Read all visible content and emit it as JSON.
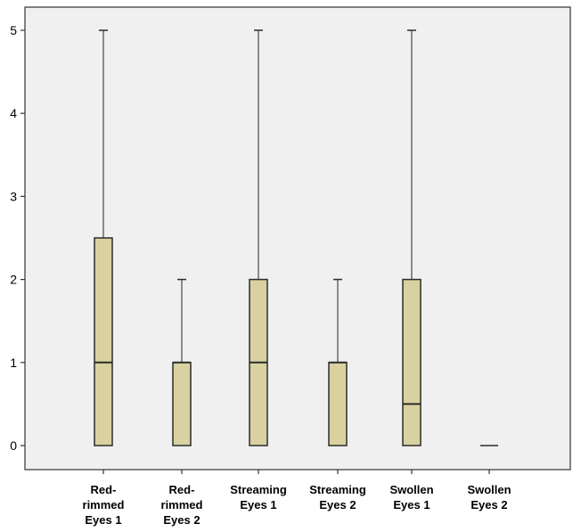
{
  "chart_data": {
    "type": "boxplot",
    "title": "",
    "xlabel": "",
    "ylabel": "",
    "ylim": [
      0,
      5
    ],
    "yticks": [
      0,
      1,
      2,
      3,
      4,
      5
    ],
    "grid": false,
    "categories": [
      [
        "Red-",
        "rimmed",
        "Eyes 1"
      ],
      [
        "Red-",
        "rimmed",
        "Eyes 2"
      ],
      [
        "Streaming",
        "Eyes 1"
      ],
      [
        "Streaming",
        "Eyes 2"
      ],
      [
        "Swollen",
        "Eyes 1"
      ],
      [
        "Swollen",
        "Eyes 2"
      ]
    ],
    "boxes": [
      {
        "min": 0,
        "q1": 0,
        "median": 1,
        "q3": 2.5,
        "max": 5
      },
      {
        "min": 0,
        "q1": 0,
        "median": 1,
        "q3": 1,
        "max": 2
      },
      {
        "min": 0,
        "q1": 0,
        "median": 1,
        "q3": 2,
        "max": 5
      },
      {
        "min": 0,
        "q1": 0,
        "median": 1,
        "q3": 1,
        "max": 2
      },
      {
        "min": 0,
        "q1": 0,
        "median": 0.5,
        "q3": 2,
        "max": 5
      },
      {
        "min": 0,
        "q1": 0,
        "median": 0,
        "q3": 0,
        "max": 0
      }
    ],
    "colors": {
      "plot_background": "#f0f0f0",
      "box_fill": "#d9d2a0",
      "box_stroke": "#2b2b2b",
      "axis": "#333333"
    }
  }
}
